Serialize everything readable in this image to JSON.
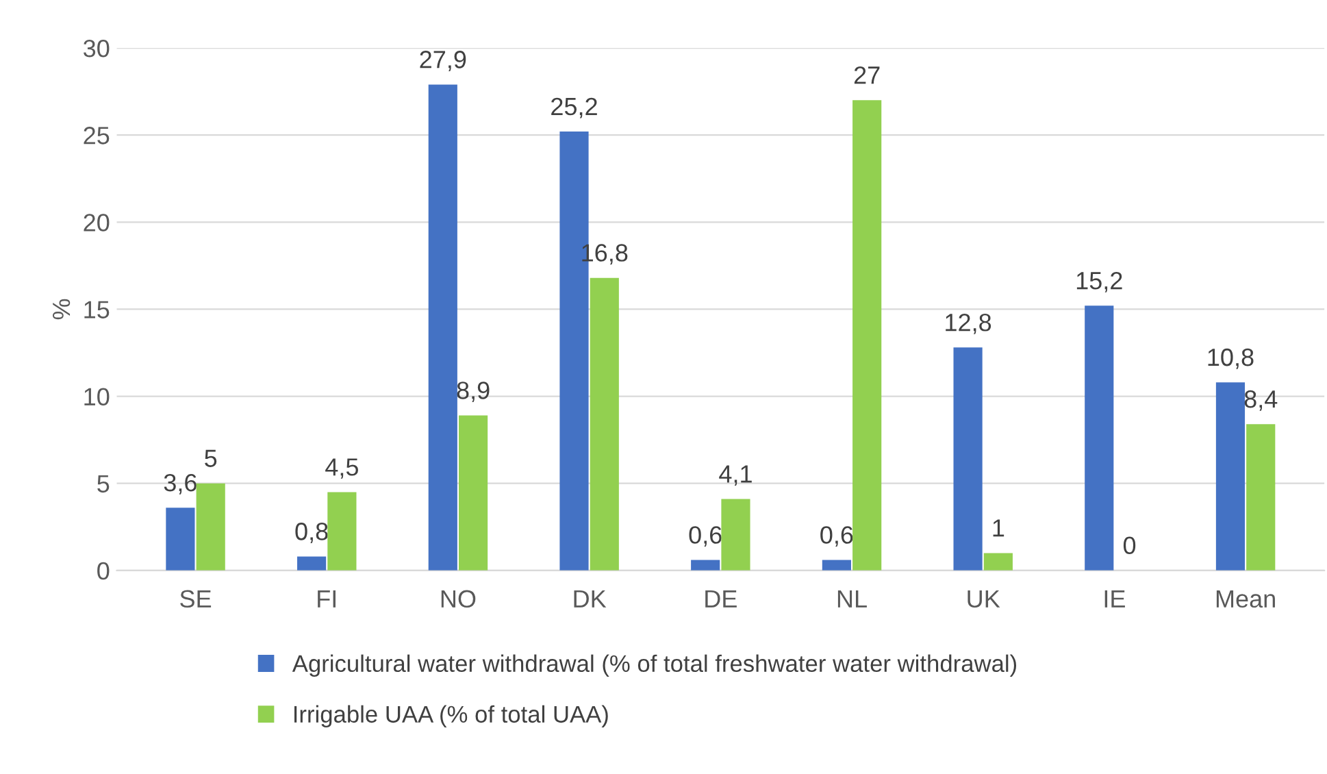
{
  "chart_data": {
    "type": "bar",
    "ylabel": "%",
    "categories": [
      "SE",
      "FI",
      "NO",
      "DK",
      "DE",
      "NL",
      "UK",
      "IE",
      "Mean"
    ],
    "series": [
      {
        "name": "Agricultural water withdrawal (% of total freshwater water withdrawal)",
        "color": "#4472c4",
        "values": [
          3.6,
          0.8,
          27.9,
          25.2,
          0.6,
          0.6,
          12.8,
          15.2,
          10.8
        ],
        "value_labels": [
          "3,6",
          "0,8",
          "27,9",
          "25,2",
          "0,6",
          "0,6",
          "12,8",
          "15,2",
          "10,8"
        ]
      },
      {
        "name": "Irrigable UAA (% of total UAA)",
        "color": "#92d050",
        "values": [
          5,
          4.5,
          8.9,
          16.8,
          4.1,
          27,
          1,
          0,
          8.4
        ],
        "value_labels": [
          "5",
          "4,5",
          "8,9",
          "16,8",
          "4,1",
          "27",
          "1",
          "0",
          "8,4"
        ]
      }
    ],
    "ylim": [
      0,
      30
    ],
    "yticks": [
      0,
      5,
      10,
      15,
      20,
      25,
      30
    ],
    "grid": "y",
    "legend": "bottom"
  }
}
